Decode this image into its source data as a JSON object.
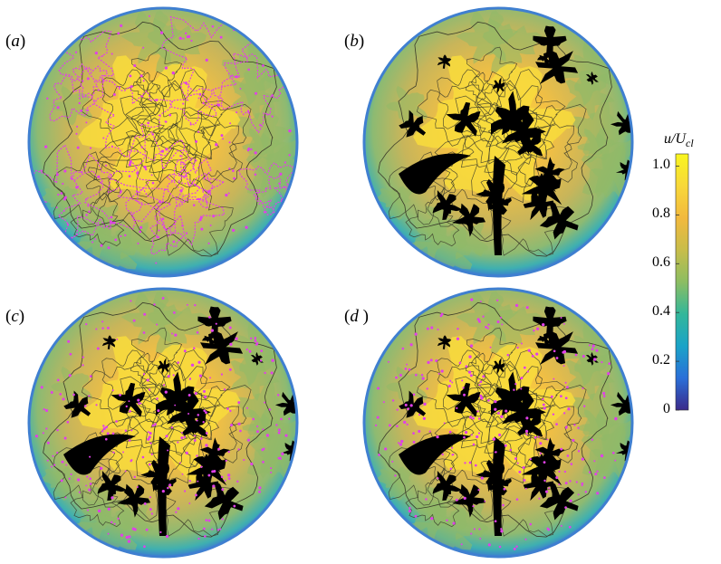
{
  "panels": [
    {
      "label_prefix": "(",
      "letter": "a",
      "label_suffix": ")",
      "magenta": "heavy",
      "black": "none"
    },
    {
      "label_prefix": "(",
      "letter": "b",
      "label_suffix": ")",
      "magenta": "none",
      "black": "yes"
    },
    {
      "label_prefix": "(",
      "letter": "c",
      "label_suffix": ")",
      "magenta": "dots",
      "black": "yes"
    },
    {
      "label_prefix": "(",
      "letter": "d",
      "label_suffix": " )",
      "magenta": "dots",
      "black": "yes"
    }
  ],
  "colorbar": {
    "title_main": "u/U",
    "title_sub": "cl",
    "ticks": [
      "1.0",
      "0.8",
      "0.6",
      "0.4",
      "0.2",
      "0"
    ],
    "tick_values": [
      1.0,
      0.8,
      0.6,
      0.4,
      0.2,
      0.0
    ],
    "range": [
      0,
      1.05
    ],
    "colors": [
      "#3b2a8a",
      "#2a6fd8",
      "#1aa3c8",
      "#33b79a",
      "#8cbd62",
      "#c8bd4a",
      "#f2b93e",
      "#f8d83a",
      "#f9f51e"
    ]
  },
  "colors": {
    "contour_line": "#3a3a2a",
    "magenta": "#e040e8",
    "black_structure": "#000000",
    "rim": "#3f7fd0"
  }
}
